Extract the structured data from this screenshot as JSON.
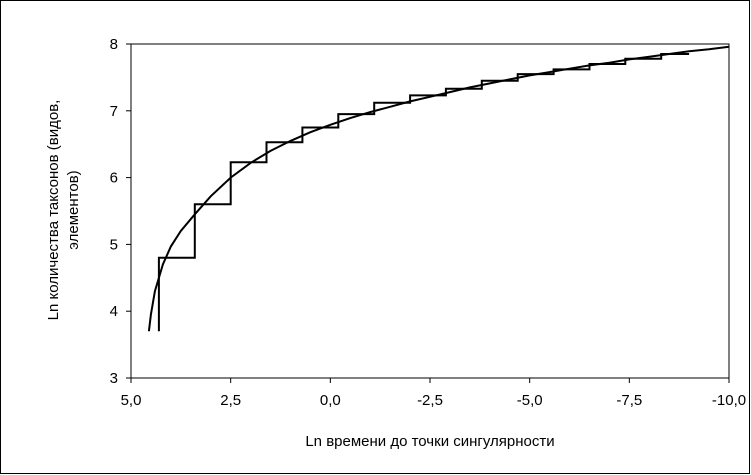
{
  "chart_data": {
    "type": "line",
    "title": "",
    "xlabel": "Ln времени до точки сингулярности",
    "ylabel_lines": [
      "Ln количества таксонов (видов,",
      "элементов)"
    ],
    "xlim": [
      5.0,
      -10.0
    ],
    "ylim": [
      3,
      8
    ],
    "x_axis_reversed": true,
    "x_ticks": [
      5.0,
      2.5,
      0.0,
      -2.5,
      -5.0,
      -7.5,
      -10.0
    ],
    "x_tick_labels": [
      "5,0",
      "2,5",
      "0,0",
      "-2,5",
      "-5,0",
      "-7,5",
      "-10,0"
    ],
    "y_ticks": [
      3,
      4,
      5,
      6,
      7,
      8
    ],
    "y_tick_labels": [
      "3",
      "4",
      "5",
      "6",
      "7",
      "8"
    ],
    "grid": false,
    "legend": "none",
    "series": [
      {
        "kind": "step",
        "color": "#000000",
        "points": [
          [
            4.3,
            3.7
          ],
          [
            4.3,
            4.8
          ],
          [
            3.4,
            4.8
          ],
          [
            3.4,
            5.6
          ],
          [
            2.5,
            5.6
          ],
          [
            2.5,
            6.23
          ],
          [
            1.6,
            6.23
          ],
          [
            1.6,
            6.53
          ],
          [
            0.7,
            6.53
          ],
          [
            0.7,
            6.75
          ],
          [
            -0.2,
            6.75
          ],
          [
            -0.2,
            6.95
          ],
          [
            -1.1,
            6.95
          ],
          [
            -1.1,
            7.12
          ],
          [
            -2.0,
            7.12
          ],
          [
            -2.0,
            7.23
          ],
          [
            -2.9,
            7.23
          ],
          [
            -2.9,
            7.33
          ],
          [
            -3.8,
            7.33
          ],
          [
            -3.8,
            7.45
          ],
          [
            -4.7,
            7.45
          ],
          [
            -4.7,
            7.55
          ],
          [
            -5.6,
            7.55
          ],
          [
            -5.6,
            7.62
          ],
          [
            -6.5,
            7.62
          ],
          [
            -6.5,
            7.7
          ],
          [
            -7.4,
            7.7
          ],
          [
            -7.4,
            7.78
          ],
          [
            -8.3,
            7.78
          ],
          [
            -8.3,
            7.85
          ],
          [
            -9.0,
            7.85
          ]
        ]
      },
      {
        "kind": "smooth",
        "color": "#000000",
        "points": [
          [
            4.55,
            3.7
          ],
          [
            4.5,
            3.95
          ],
          [
            4.4,
            4.3
          ],
          [
            4.2,
            4.7
          ],
          [
            4.0,
            4.97
          ],
          [
            3.75,
            5.2
          ],
          [
            3.4,
            5.45
          ],
          [
            3.0,
            5.72
          ],
          [
            2.5,
            6.0
          ],
          [
            2.0,
            6.22
          ],
          [
            1.5,
            6.4
          ],
          [
            1.0,
            6.55
          ],
          [
            0.5,
            6.68
          ],
          [
            0.0,
            6.79
          ],
          [
            -0.5,
            6.89
          ],
          [
            -1.0,
            6.98
          ],
          [
            -1.5,
            7.06
          ],
          [
            -2.0,
            7.14
          ],
          [
            -2.5,
            7.21
          ],
          [
            -3.0,
            7.28
          ],
          [
            -3.5,
            7.35
          ],
          [
            -4.0,
            7.41
          ],
          [
            -4.5,
            7.47
          ],
          [
            -5.0,
            7.53
          ],
          [
            -5.5,
            7.58
          ],
          [
            -6.0,
            7.63
          ],
          [
            -6.5,
            7.68
          ],
          [
            -7.0,
            7.72
          ],
          [
            -7.5,
            7.77
          ],
          [
            -8.0,
            7.81
          ],
          [
            -8.5,
            7.85
          ],
          [
            -9.0,
            7.89
          ],
          [
            -9.5,
            7.92
          ],
          [
            -10.0,
            7.96
          ]
        ]
      }
    ]
  }
}
